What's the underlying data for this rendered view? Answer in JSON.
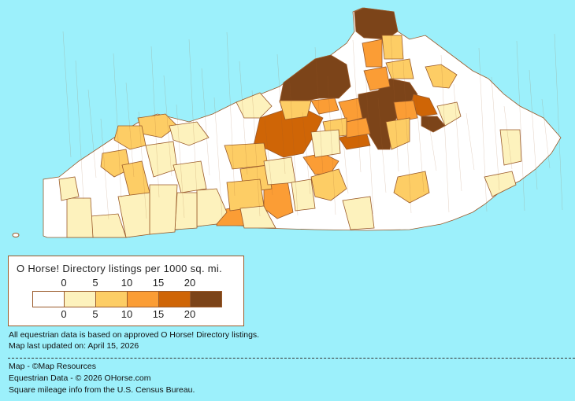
{
  "legend": {
    "title": "O Horse! Directory listings per 1000 sq. mi.",
    "top_ticks": [
      "0",
      "5",
      "10",
      "15",
      "20"
    ],
    "bottom_ticks": [
      "0",
      "5",
      "10",
      "15",
      "20"
    ],
    "bins": [
      {
        "range": "0",
        "color": "#ffffff"
      },
      {
        "range": "0-5",
        "color": "#fdf2bd"
      },
      {
        "range": "5-10",
        "color": "#fdcd65"
      },
      {
        "range": "10-15",
        "color": "#fb9d35"
      },
      {
        "range": "15-20",
        "color": "#cf6506"
      },
      {
        "range": "20+",
        "color": "#7c4419"
      }
    ]
  },
  "notes": {
    "data_basis": "All equestrian data is based on approved O Horse! Directory listings.",
    "updated": "Map last updated on: April 15, 2026"
  },
  "credits": {
    "map": "Map - ©Map Resources",
    "equestrian": "Equestrian Data - © 2026 OHorse.com",
    "census": "Square mileage info from the U.S. Census Bureau."
  },
  "colors": {
    "background": "#9cf0fb",
    "border": "#9a5a2a"
  }
}
